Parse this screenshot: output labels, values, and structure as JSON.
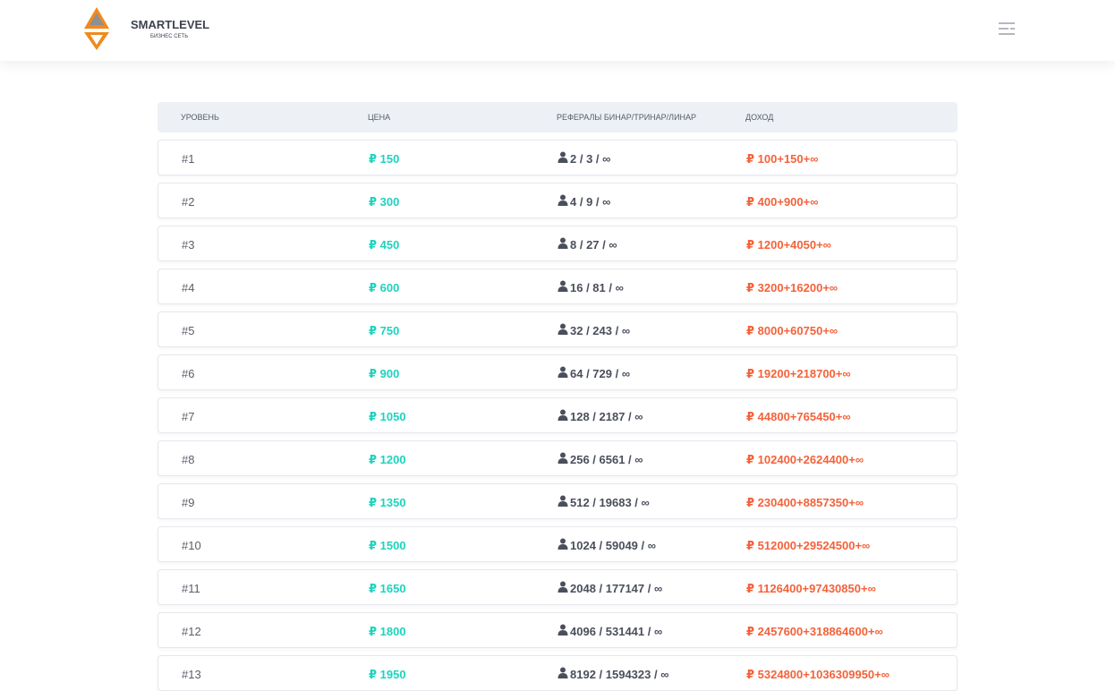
{
  "header": {
    "brand": "SMARTLEVEL",
    "tagline": "БИЗНЕС СЕТЬ"
  },
  "table": {
    "columns": [
      "УРОВЕНЬ",
      "ЦЕНА",
      "РЕФЕРАЛЫ БИНАР/ТРИНАР/ЛИНАР",
      "ДОХОД"
    ],
    "rows": [
      [
        "#1",
        "₽ 150",
        "2 / 3 / ∞",
        "₽ 100+150+∞"
      ],
      [
        "#2",
        "₽ 300",
        "4 / 9 / ∞",
        "₽ 400+900+∞"
      ],
      [
        "#3",
        "₽ 450",
        "8 / 27 / ∞",
        "₽ 1200+4050+∞"
      ],
      [
        "#4",
        "₽ 600",
        "16 / 81 / ∞",
        "₽ 3200+16200+∞"
      ],
      [
        "#5",
        "₽ 750",
        "32 / 243 / ∞",
        "₽ 8000+60750+∞"
      ],
      [
        "#6",
        "₽ 900",
        "64 / 729 / ∞",
        "₽ 19200+218700+∞"
      ],
      [
        "#7",
        "₽ 1050",
        "128 / 2187 / ∞",
        "₽ 44800+765450+∞"
      ],
      [
        "#8",
        "₽ 1200",
        "256 / 6561 / ∞",
        "₽ 102400+2624400+∞"
      ],
      [
        "#9",
        "₽ 1350",
        "512 / 19683 / ∞",
        "₽ 230400+8857350+∞"
      ],
      [
        "#10",
        "₽ 1500",
        "1024 / 59049 / ∞",
        "₽ 512000+29524500+∞"
      ],
      [
        "#11",
        "₽ 1650",
        "2048 / 177147 / ∞",
        "₽ 1126400+97430850+∞"
      ],
      [
        "#12",
        "₽ 1800",
        "4096 / 531441 / ∞",
        "₽ 2457600+318864600+∞"
      ],
      [
        "#13",
        "₽ 1950",
        "8192 / 1594323 / ∞",
        "₽ 5324800+1036309950+∞"
      ]
    ]
  }
}
